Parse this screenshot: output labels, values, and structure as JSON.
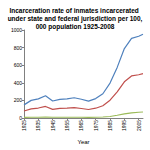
{
  "chart_data": {
    "type": "line",
    "title": "Incarceration rate of inmates incarcerated under state and federal jurisdiction per 100,000 population 1925-2008",
    "x_label": "Year",
    "x": [
      1925,
      1930,
      1935,
      1940,
      1945,
      1950,
      1955,
      1960,
      1965,
      1970,
      1975,
      1980,
      1985,
      1990,
      1995,
      2000,
      2005,
      2008
    ],
    "series": [
      {
        "color": "#4f81bd",
        "values": [
          149,
          200,
          217,
          252,
          193,
          211,
          217,
          230,
          213,
          191,
          220,
          275,
          397,
          575,
          789,
          904,
          929,
          952
        ]
      },
      {
        "color": "#c0504d",
        "values": [
          79,
          104,
          113,
          131,
          98,
          109,
          112,
          117,
          108,
          96,
          111,
          139,
          202,
          297,
          411,
          478,
          491,
          504
        ]
      },
      {
        "color": "#9bbb59",
        "values": [
          6,
          8,
          8,
          9,
          8,
          8,
          8,
          8,
          8,
          6,
          8,
          11,
          17,
          31,
          47,
          59,
          65,
          68
        ]
      }
    ],
    "xlim": [
      1925,
      2008
    ],
    "xticks": [
      1925,
      1935,
      1945,
      1955,
      1965,
      1975,
      1985,
      1995,
      2005
    ],
    "ylim": [
      0,
      1000
    ],
    "yticks": [
      0,
      200,
      400,
      600,
      800,
      1000
    ],
    "grid": false
  }
}
